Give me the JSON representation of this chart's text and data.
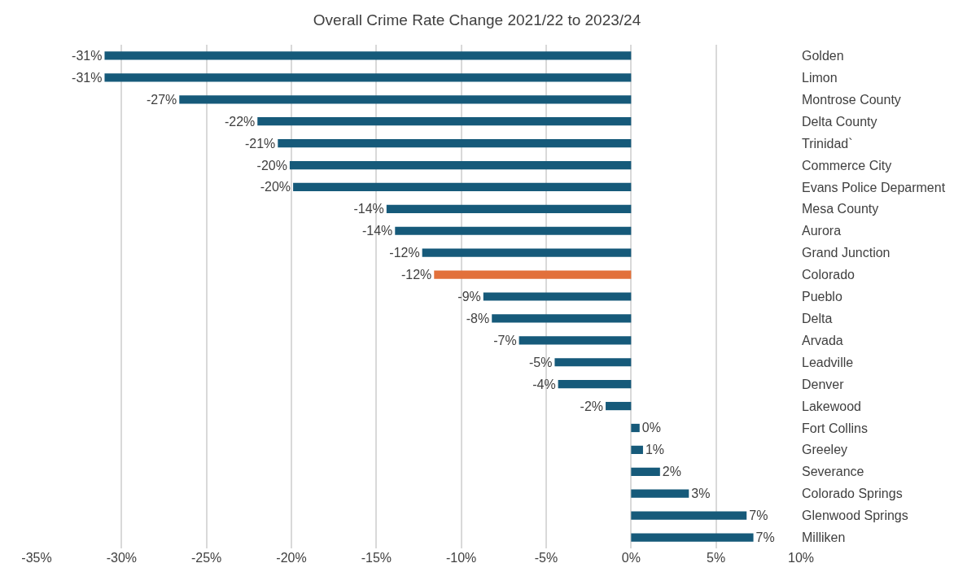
{
  "chart_data": {
    "type": "bar",
    "orientation": "horizontal",
    "title": "Overall Crime Rate Change 2021/22 to 2023/24",
    "categories": [
      "Golden",
      "Limon",
      "Montrose County",
      "Delta County",
      "Trinidad`",
      "Commerce City",
      "Evans Police Deparment",
      "Mesa County",
      "Aurora",
      "Grand Junction",
      "Colorado",
      "Pueblo",
      "Delta",
      "Arvada",
      "Leadville",
      "Denver",
      "Lakewood",
      "Fort Collins",
      "Greeley",
      "Severance",
      "Colorado Springs",
      "Glenwood Springs",
      "Milliken"
    ],
    "values": [
      -31.0,
      -31.0,
      -26.6,
      -22.0,
      -20.8,
      -20.1,
      -19.9,
      -14.4,
      -13.9,
      -12.3,
      -11.6,
      -8.7,
      -8.2,
      -6.6,
      -4.5,
      -4.3,
      -1.5,
      0.5,
      0.7,
      1.7,
      3.4,
      6.8,
      7.2
    ],
    "value_labels": [
      "-31%",
      "-31%",
      "-27%",
      "-22%",
      "-21%",
      "-20%",
      "-20%",
      "-14%",
      "-14%",
      "-12%",
      "-12%",
      "-9%",
      "-8%",
      "-7%",
      "-5%",
      "-4%",
      "-2%",
      "0%",
      "1%",
      "2%",
      "3%",
      "7%",
      "7%"
    ],
    "colors": [
      "#165a7a",
      "#165a7a",
      "#165a7a",
      "#165a7a",
      "#165a7a",
      "#165a7a",
      "#165a7a",
      "#165a7a",
      "#165a7a",
      "#165a7a",
      "#e2703a",
      "#165a7a",
      "#165a7a",
      "#165a7a",
      "#165a7a",
      "#165a7a",
      "#165a7a",
      "#165a7a",
      "#165a7a",
      "#165a7a",
      "#165a7a",
      "#165a7a",
      "#165a7a"
    ],
    "xlim": [
      -35,
      10
    ],
    "xticks": [
      {
        "value": -35,
        "label": "-35%"
      },
      {
        "value": -30,
        "label": "-30%"
      },
      {
        "value": -25,
        "label": "-25%"
      },
      {
        "value": -20,
        "label": "-20%"
      },
      {
        "value": -15,
        "label": "-15%"
      },
      {
        "value": -10,
        "label": "-10%"
      },
      {
        "value": -5,
        "label": "-5%"
      },
      {
        "value": 0,
        "label": "0%"
      },
      {
        "value": 5,
        "label": "5%"
      },
      {
        "value": 10,
        "label": "10%"
      }
    ],
    "grid": "x"
  }
}
